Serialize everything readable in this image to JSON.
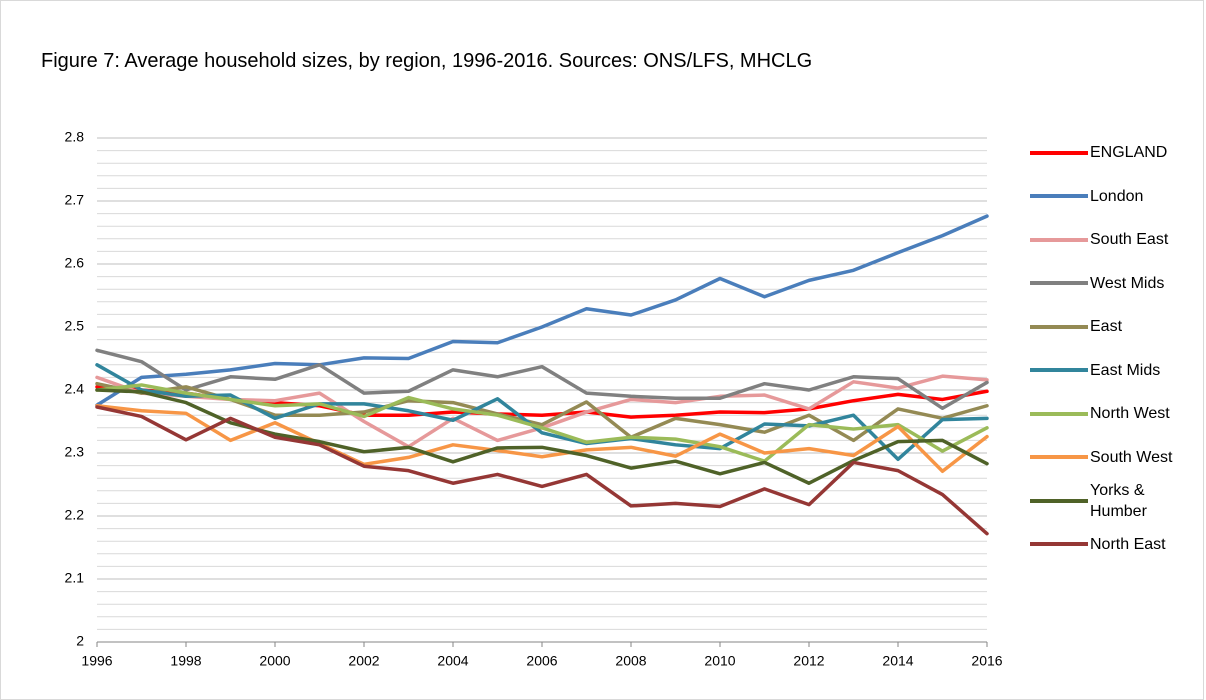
{
  "chart_data": {
    "type": "line",
    "title": "Figure 7: Average household sizes, by region, 1996-2016. Sources: ONS/LFS, MHCLG",
    "x": [
      1996,
      1997,
      1998,
      1999,
      2000,
      2001,
      2002,
      2003,
      2004,
      2005,
      2006,
      2007,
      2008,
      2009,
      2010,
      2011,
      2012,
      2013,
      2014,
      2015,
      2016
    ],
    "xlim": [
      1996,
      2016
    ],
    "xticks": [
      1996,
      1998,
      2000,
      2002,
      2004,
      2006,
      2008,
      2010,
      2012,
      2014,
      2016
    ],
    "ylim": [
      2,
      2.8
    ],
    "yticks": [
      2,
      2.1,
      2.2,
      2.3,
      2.4,
      2.5,
      2.6,
      2.7,
      2.8
    ],
    "grid": true,
    "legend": "right",
    "series": [
      {
        "name": "ENGLAND",
        "color": "#ff0000",
        "values": [
          2.405,
          2.4,
          2.395,
          2.385,
          2.38,
          2.375,
          2.36,
          2.36,
          2.365,
          2.362,
          2.36,
          2.365,
          2.357,
          2.36,
          2.365,
          2.364,
          2.37,
          2.383,
          2.393,
          2.385,
          2.398
        ]
      },
      {
        "name": "London",
        "color": "#4a7ebb",
        "values": [
          2.376,
          2.42,
          2.425,
          2.432,
          2.442,
          2.44,
          2.451,
          2.45,
          2.477,
          2.475,
          2.5,
          2.529,
          2.519,
          2.543,
          2.577,
          2.548,
          2.574,
          2.59,
          2.618,
          2.645,
          2.676
        ]
      },
      {
        "name": "South East",
        "color": "#e6999a",
        "values": [
          2.42,
          2.395,
          2.39,
          2.385,
          2.383,
          2.395,
          2.35,
          2.31,
          2.355,
          2.32,
          2.34,
          2.365,
          2.385,
          2.38,
          2.39,
          2.392,
          2.37,
          2.413,
          2.403,
          2.422,
          2.416
        ]
      },
      {
        "name": "West Mids",
        "color": "#808080",
        "values": [
          2.463,
          2.445,
          2.4,
          2.421,
          2.417,
          2.44,
          2.395,
          2.398,
          2.432,
          2.421,
          2.437,
          2.395,
          2.39,
          2.387,
          2.387,
          2.41,
          2.4,
          2.421,
          2.418,
          2.371,
          2.412
        ]
      },
      {
        "name": "East",
        "color": "#948a54",
        "values": [
          2.41,
          2.395,
          2.405,
          2.385,
          2.36,
          2.36,
          2.365,
          2.383,
          2.38,
          2.362,
          2.345,
          2.381,
          2.325,
          2.355,
          2.345,
          2.333,
          2.36,
          2.32,
          2.37,
          2.355,
          2.375
        ]
      },
      {
        "name": "East Mids",
        "color": "#31859c",
        "values": [
          2.44,
          2.4,
          2.39,
          2.392,
          2.355,
          2.378,
          2.378,
          2.367,
          2.352,
          2.386,
          2.332,
          2.315,
          2.323,
          2.313,
          2.307,
          2.346,
          2.343,
          2.36,
          2.29,
          2.353,
          2.355
        ]
      },
      {
        "name": "North West",
        "color": "#9bbb59",
        "values": [
          2.4,
          2.408,
          2.395,
          2.385,
          2.375,
          2.378,
          2.358,
          2.388,
          2.37,
          2.36,
          2.34,
          2.317,
          2.325,
          2.322,
          2.31,
          2.287,
          2.345,
          2.338,
          2.345,
          2.303,
          2.34
        ]
      },
      {
        "name": "South West",
        "color": "#f79646",
        "values": [
          2.375,
          2.367,
          2.363,
          2.32,
          2.348,
          2.315,
          2.282,
          2.293,
          2.313,
          2.304,
          2.294,
          2.305,
          2.309,
          2.295,
          2.33,
          2.3,
          2.307,
          2.296,
          2.342,
          2.271,
          2.326
        ]
      },
      {
        "name": "Yorks & Humber",
        "color": "#4f6228",
        "values": [
          2.4,
          2.397,
          2.38,
          2.348,
          2.33,
          2.318,
          2.302,
          2.309,
          2.286,
          2.308,
          2.309,
          2.296,
          2.276,
          2.287,
          2.267,
          2.285,
          2.252,
          2.288,
          2.318,
          2.32,
          2.283
        ]
      },
      {
        "name": "North East",
        "color": "#953735",
        "values": [
          2.373,
          2.358,
          2.321,
          2.355,
          2.325,
          2.313,
          2.279,
          2.272,
          2.252,
          2.266,
          2.247,
          2.266,
          2.216,
          2.22,
          2.215,
          2.243,
          2.218,
          2.285,
          2.272,
          2.234,
          2.172
        ]
      }
    ]
  }
}
